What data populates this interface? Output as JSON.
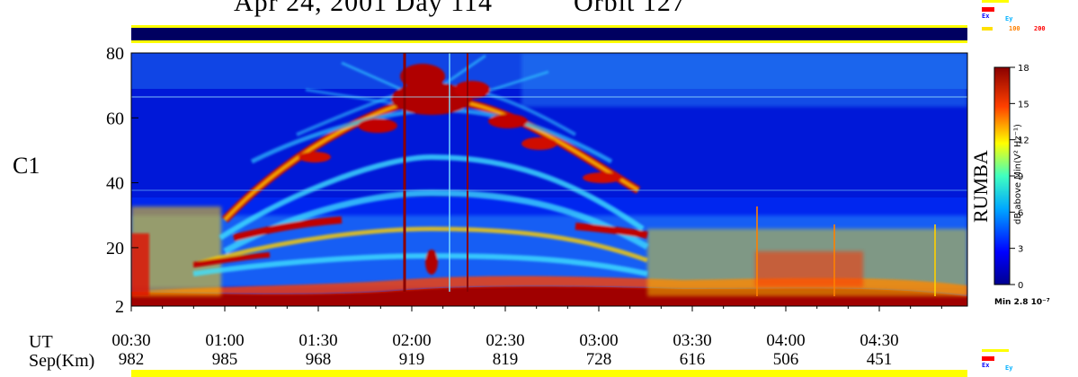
{
  "header": {
    "date_text": "Apr 24, 2001 Day 114",
    "orbit_text": "Orbit 127"
  },
  "panel_label": "C1",
  "instrument_label": "RUMBA",
  "colorbar": {
    "title": "dB above Min(V² Hz⁻¹)",
    "ticks": [
      "0",
      "3",
      "6",
      "9",
      "12",
      "15",
      "18"
    ],
    "min_label": "Min 2.8 10⁻⁷"
  },
  "legend_top": {
    "row1": "Ex",
    "row2": "Ey",
    "row3a": "100",
    "row3b": "200"
  },
  "legend_bottom": {
    "row1": "Ex",
    "row2": "Ey"
  },
  "footer": {
    "ut_label": "UT",
    "sep_label": "Sep(Km)"
  },
  "colors": {
    "low": "#00008f",
    "mid": "#00c0ff",
    "high": "#ffd000",
    "max": "#8a0000",
    "bar_yellow": "#ffff00",
    "bar_navy": "#000060"
  },
  "chart_data": {
    "type": "heatmap",
    "title": "Apr 24, 2001 Day 114 Orbit 127",
    "xlabel": "UT",
    "ylabel": "",
    "y_ticks": [
      2,
      20,
      40,
      60,
      80
    ],
    "ylim": [
      2,
      80
    ],
    "x_ticks": [
      "00:30",
      "01:00",
      "01:30",
      "02:00",
      "02:30",
      "03:00",
      "03:30",
      "04:00",
      "04:30"
    ],
    "sep_km": [
      "982",
      "985",
      "968",
      "919",
      "819",
      "728",
      "616",
      "506",
      "451"
    ],
    "colorbar_range": [
      0,
      18
    ],
    "colorbar_unit": "dB above Min(V² Hz⁻¹)"
  }
}
